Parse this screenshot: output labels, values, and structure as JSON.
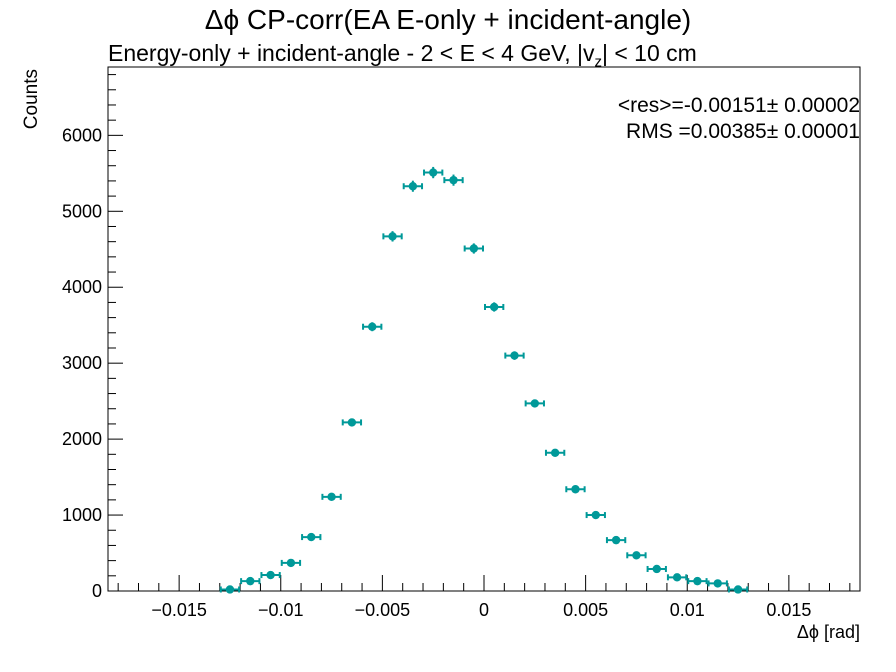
{
  "chart_data": {
    "type": "scatter",
    "title": "Δϕ CP-corr(EA E-only + incident-angle)",
    "subtitle_pre": "Energy-only + incident-angle   -   2 < E < 4 GeV, |v",
    "subtitle_sub": "z",
    "subtitle_post": "| < 10 cm",
    "xlabel": "Δϕ  [rad]",
    "ylabel": "Counts",
    "xlim": [
      -0.0185,
      0.0185
    ],
    "ylim": [
      0,
      6900
    ],
    "x_ticks": [
      -0.015,
      -0.01,
      -0.005,
      0,
      0.005,
      0.01,
      0.015
    ],
    "x_tick_labels": [
      "−0.015",
      "−0.01",
      "−0.005",
      "0",
      "0.005",
      "0.01",
      "0.015"
    ],
    "y_ticks": [
      0,
      1000,
      2000,
      3000,
      4000,
      5000,
      6000
    ],
    "y_tick_labels": [
      "0",
      "1000",
      "2000",
      "3000",
      "4000",
      "5000",
      "6000"
    ],
    "bin_width": 0.001,
    "stats": {
      "mean_text": "<res>=-0.00151± 0.00002",
      "rms_text": "RMS =0.00385± 0.00001"
    },
    "color": "#009999",
    "series": [
      {
        "x": [
          -0.0125,
          -0.0115,
          -0.0105,
          -0.0095,
          -0.0085,
          -0.0075,
          -0.0065,
          -0.0055,
          -0.0045,
          -0.0035,
          -0.0025,
          -0.0015,
          -0.0005,
          0.0005,
          0.0015,
          0.0025,
          0.0035,
          0.0045,
          0.0055,
          0.0065,
          0.0075,
          0.0085,
          0.0095,
          0.0105,
          0.0115,
          0.0125
        ],
        "y": [
          20,
          130,
          210,
          370,
          710,
          1240,
          2220,
          3480,
          4670,
          5330,
          5510,
          5410,
          4510,
          3740,
          3100,
          2470,
          1820,
          1340,
          1000,
          670,
          470,
          290,
          180,
          130,
          100,
          20
        ]
      }
    ]
  }
}
